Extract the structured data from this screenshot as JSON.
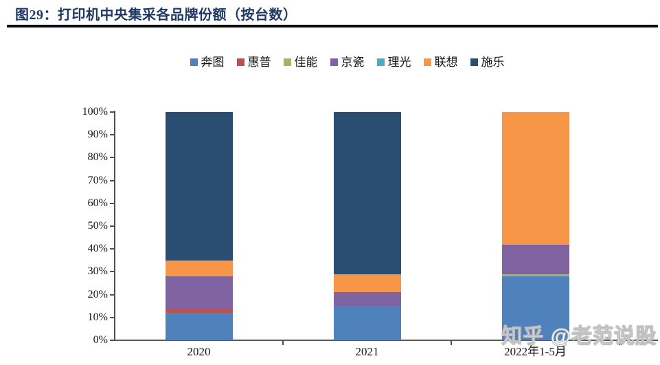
{
  "header": {
    "title": "图29：打印机中央集采各品牌份额（按台数）"
  },
  "watermark": {
    "text": "知乎 @老范说股"
  },
  "chart_data": {
    "type": "bar",
    "stacked": true,
    "title": "打印机中央集采各品牌份额（按台数）",
    "categories": [
      "2020",
      "2021",
      "2022年1-5月"
    ],
    "series": [
      {
        "name": "奔图",
        "color": "#4F81BD",
        "values": [
          12,
          15,
          28
        ]
      },
      {
        "name": "惠普",
        "color": "#C0504D",
        "values": [
          2,
          0,
          0
        ]
      },
      {
        "name": "佳能",
        "color": "#9BBB59",
        "values": [
          0,
          0,
          1
        ]
      },
      {
        "name": "京瓷",
        "color": "#8064A2",
        "values": [
          14,
          6,
          13
        ]
      },
      {
        "name": "理光",
        "color": "#4BACC6",
        "values": [
          0,
          0,
          0
        ]
      },
      {
        "name": "联想",
        "color": "#F79646",
        "values": [
          7,
          8,
          58
        ]
      },
      {
        "name": "施乐",
        "color": "#2A4E71",
        "values": [
          65,
          71,
          0
        ]
      }
    ],
    "xlabel": "",
    "ylabel": "",
    "ylim": [
      0,
      100
    ],
    "ytick_step": 10,
    "ytick_labels": [
      "0%",
      "10%",
      "20%",
      "30%",
      "40%",
      "50%",
      "60%",
      "70%",
      "80%",
      "90%",
      "100%"
    ],
    "grid": false,
    "legend_position": "top"
  }
}
